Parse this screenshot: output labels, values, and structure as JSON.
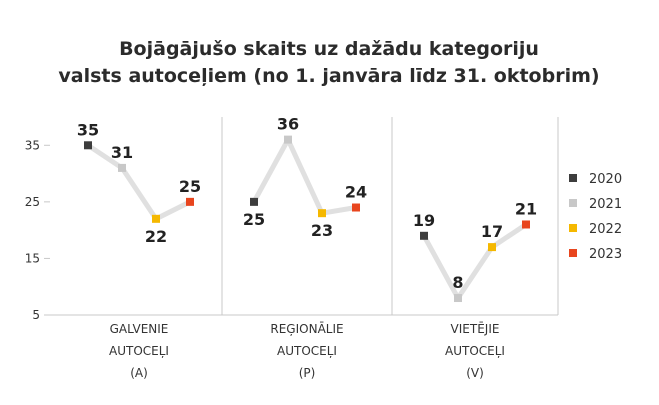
{
  "chart_data": {
    "type": "line",
    "title_lines": [
      "Bojāgājušo skaits uz dažādu kategoriju",
      "valsts autoceļiem (no 1. janvāra līdz 31. oktobrim)"
    ],
    "years": [
      "2020",
      "2021",
      "2022",
      "2023"
    ],
    "ylim": [
      5,
      40
    ],
    "yticks": [
      5,
      15,
      25,
      35
    ],
    "grid": false,
    "legend_position": "right",
    "groups": [
      {
        "label_lines": [
          "GALVENIE",
          "AUTOCEĻI",
          "(A)"
        ],
        "values": [
          35,
          31,
          22,
          25
        ]
      },
      {
        "label_lines": [
          "REĢIONĀLIE",
          "AUTOCEĻI",
          "(P)"
        ],
        "values": [
          25,
          36,
          23,
          24
        ]
      },
      {
        "label_lines": [
          "VIETĒJIE",
          "AUTOCEĻI",
          "(V)"
        ],
        "values": [
          19,
          8,
          17,
          21
        ]
      }
    ],
    "colors": {
      "2020": "#3d3d3d",
      "2021": "#c8c8c8",
      "2022": "#f5b800",
      "2023": "#e8451e",
      "line": "#e0e0e0",
      "axis": "#c8c8c8"
    }
  }
}
